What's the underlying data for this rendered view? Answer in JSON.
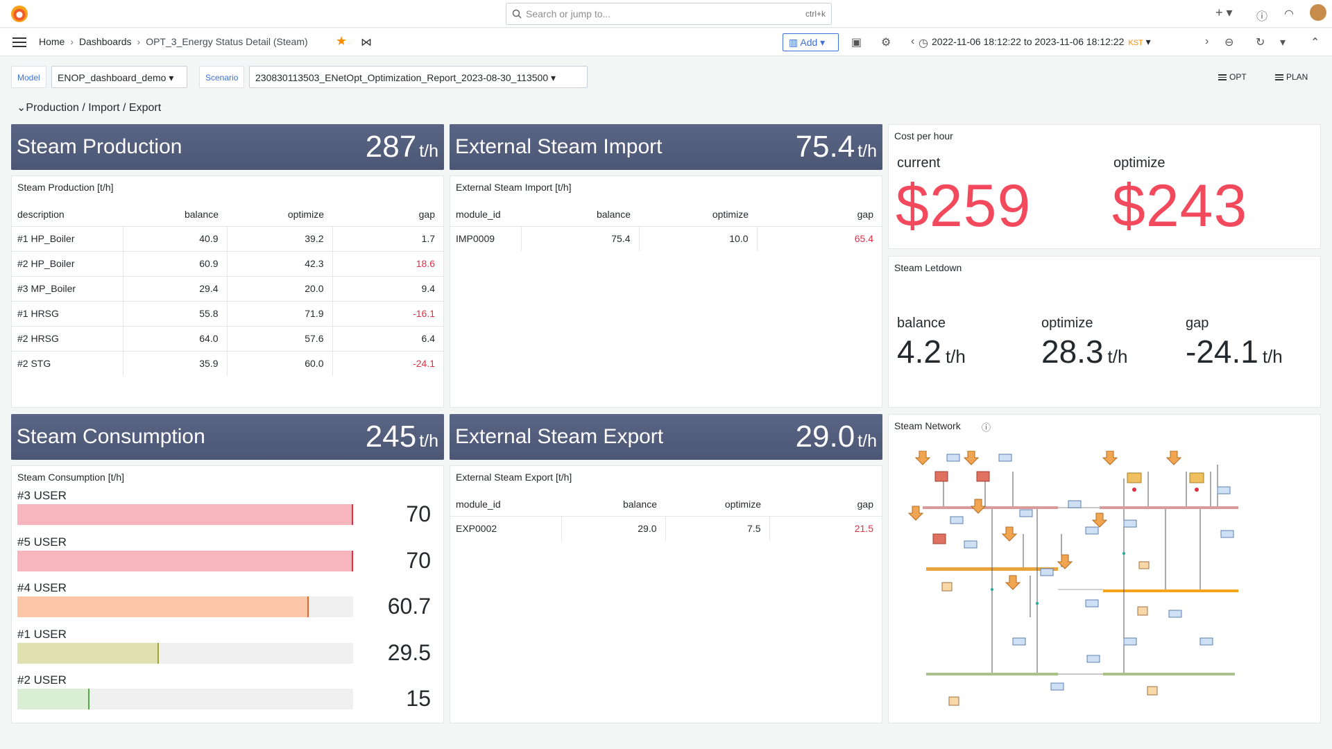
{
  "search": {
    "placeholder": "Search or jump to...",
    "shortcut": "ctrl+k"
  },
  "nav": {
    "crumbs": [
      "Home",
      "Dashboards",
      "OPT_3_Energy Status Detail (Steam)"
    ],
    "add_label": "Add",
    "time_range": "2022-11-06 18:12:22 to 2023-11-06 18:12:22",
    "timezone": "KST"
  },
  "vars": {
    "model_label": "Model",
    "model_value": "ENOP_dashboard_demo",
    "scenario_label": "Scenario",
    "scenario_value": "230830113503_ENetOpt_Optimization_Report_2023-08-30_113500",
    "link_opt": "OPT",
    "link_plan": "PLAN"
  },
  "row_title": "Production / Import / Export",
  "banners": {
    "production": {
      "title": "Steam Production",
      "value": "287",
      "unit": "t/h"
    },
    "import": {
      "title": "External Steam Import",
      "value": "75.4",
      "unit": "t/h"
    },
    "consumption": {
      "title": "Steam Consumption",
      "value": "245",
      "unit": "t/h"
    },
    "export": {
      "title": "External Steam Export",
      "value": "29.0",
      "unit": "t/h"
    }
  },
  "production_table": {
    "title": "Steam Production [t/h]",
    "headers": [
      "description",
      "balance",
      "optimize",
      "gap"
    ],
    "rows": [
      [
        "#1 HP_Boiler",
        "40.9",
        "39.2",
        "1.7"
      ],
      [
        "#2 HP_Boiler",
        "60.9",
        "42.3",
        "18.6"
      ],
      [
        "#3 MP_Boiler",
        "29.4",
        "20.0",
        "9.4"
      ],
      [
        "#1 HRSG",
        "55.8",
        "71.9",
        "-16.1"
      ],
      [
        "#2 HRSG",
        "64.0",
        "57.6",
        "6.4"
      ],
      [
        "#2 STG",
        "35.9",
        "60.0",
        "-24.1"
      ]
    ]
  },
  "import_table": {
    "title": "External Steam Import [t/h]",
    "headers": [
      "module_id",
      "balance",
      "optimize",
      "gap"
    ],
    "rows": [
      [
        "IMP0009",
        "75.4",
        "10.0",
        "65.4"
      ]
    ]
  },
  "export_table": {
    "title": "External Steam Export [t/h]",
    "headers": [
      "module_id",
      "balance",
      "optimize",
      "gap"
    ],
    "rows": [
      [
        "EXP0002",
        "29.0",
        "7.5",
        "21.5"
      ]
    ]
  },
  "cost": {
    "title": "Cost per hour",
    "current_label": "current",
    "current_value": "$259",
    "optimize_label": "optimize",
    "optimize_value": "$243"
  },
  "letdown": {
    "title": "Steam Letdown",
    "balance_label": "balance",
    "balance_value": "4.2",
    "optimize_label": "optimize",
    "optimize_value": "28.3",
    "gap_label": "gap",
    "gap_value": "-24.1",
    "unit": "t/h"
  },
  "consumption": {
    "title": "Steam Consumption [t/h]",
    "max": 70,
    "items": [
      {
        "label": "#3 USER",
        "value": "70",
        "num": 70,
        "color": "#f7b6bd",
        "cap": "#e02f44"
      },
      {
        "label": "#5 USER",
        "value": "70",
        "num": 70,
        "color": "#f7b6bd",
        "cap": "#e02f44"
      },
      {
        "label": "#4 USER",
        "value": "60.7",
        "num": 60.7,
        "color": "#fbc7a8",
        "cap": "#e0662f"
      },
      {
        "label": "#1 USER",
        "value": "29.5",
        "num": 29.5,
        "color": "#dfe2b0",
        "cap": "#9ca238"
      },
      {
        "label": "#2 USER",
        "value": "15",
        "num": 15,
        "color": "#d9eed3",
        "cap": "#56a64b"
      }
    ]
  },
  "network": {
    "title": "Steam Network"
  }
}
